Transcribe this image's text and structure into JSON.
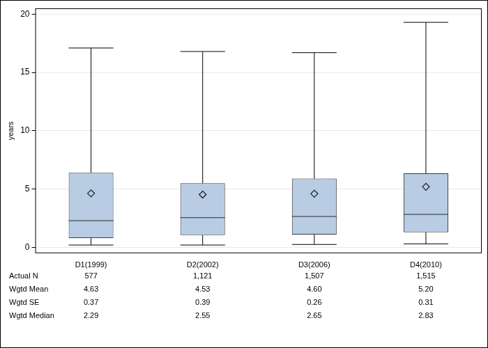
{
  "chart_data": {
    "type": "box",
    "y_label": "years",
    "categories": [
      "D1(1999)",
      "D2(2002)",
      "D3(2006)",
      "D4(2010)"
    ],
    "boxes": {
      "min": [
        0.2,
        0.2,
        0.25,
        0.3
      ],
      "q1": [
        0.8,
        1.05,
        1.1,
        1.3
      ],
      "median": [
        2.29,
        2.55,
        2.65,
        2.83
      ],
      "q3": [
        6.4,
        5.5,
        5.9,
        6.35
      ],
      "max": [
        17.1,
        16.8,
        16.7,
        19.3
      ],
      "mean": [
        4.63,
        4.53,
        4.6,
        5.2
      ]
    },
    "color": "#b8cce4",
    "marker": "diamond",
    "ylim": [
      -0.5,
      20.5
    ],
    "yticks": [
      0,
      5,
      10,
      15,
      20
    ],
    "grid": true,
    "table": {
      "rows": [
        {
          "label": "Actual N",
          "values": [
            "577",
            "1,121",
            "1,507",
            "1,515"
          ]
        },
        {
          "label": "Wgtd Mean",
          "values": [
            "4.63",
            "4.53",
            "4.60",
            "5.20"
          ]
        },
        {
          "label": "Wgtd SE",
          "values": [
            "0.37",
            "0.39",
            "0.26",
            "0.31"
          ]
        },
        {
          "label": "Wgtd Median",
          "values": [
            "2.29",
            "2.55",
            "2.65",
            "2.83"
          ]
        }
      ]
    }
  }
}
